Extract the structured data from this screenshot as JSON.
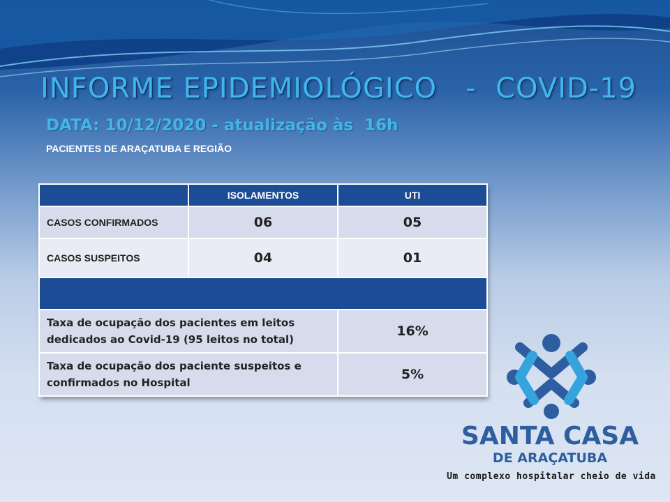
{
  "header": {
    "title": "INFORME EPIDEMIOLÓGICO   -  COVID-19",
    "date_line": "DATA: 10/12/2020 - atualização às  16h",
    "caption": "PACIENTES DE ARAÇATUBA E REGIÃO"
  },
  "table": {
    "columns": [
      "",
      "ISOLAMENTOS",
      "UTI"
    ],
    "rows": [
      {
        "label": "CASOS CONFIRMADOS",
        "isolamentos": "06",
        "uti": "05"
      },
      {
        "label": "CASOS SUSPEITOS",
        "isolamentos": "04",
        "uti": "01"
      }
    ],
    "rates": [
      {
        "label": "Taxa de ocupação dos  pacientes em leitos dedicados ao Covid-19 (95 leitos no total)",
        "value": "16%"
      },
      {
        "label": "Taxa de ocupação dos paciente suspeitos e confirmados no Hospital",
        "value": "5%"
      }
    ]
  },
  "logo": {
    "name": "SANTA CASA",
    "sub": "DE ARAÇATUBA",
    "tagline": "Um complexo hospitalar cheio de vida"
  },
  "colors": {
    "title": "#41b6ec",
    "header_cell": "#1c4c95",
    "logo_dark": "#2e5e9f",
    "logo_light": "#35a3de"
  }
}
